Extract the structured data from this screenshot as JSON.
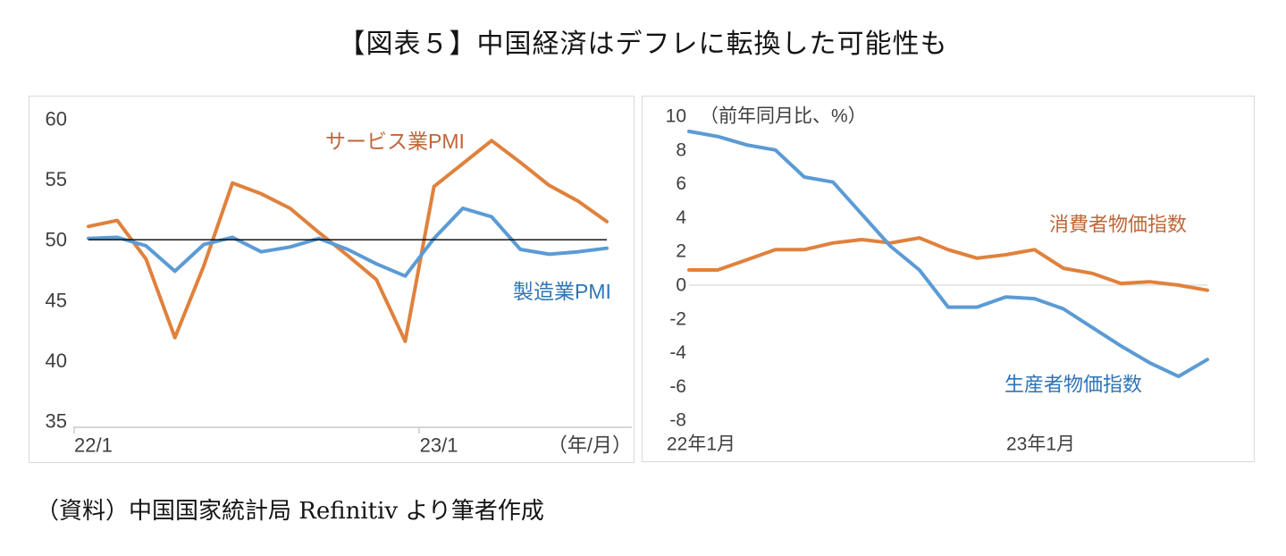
{
  "title": "【図表５】中国経済はデフレに転換した可能性も",
  "caption": "（資料）中国国家統計局 Refinitiv より筆者作成",
  "colors": {
    "orange_line": "#E0813C",
    "blue_line": "#5B9BD5",
    "orange_label": "#BF6639",
    "blue_label": "#2E75B6",
    "tick_text": "#3F3F3F",
    "panel_border": "#D9D9D9",
    "axis_line": "#BFBFBF",
    "ref_line": "#000000",
    "zero_line": "#D9D9D9"
  },
  "chart_data": [
    {
      "type": "line",
      "panel": "left",
      "categories": [
        "22/1",
        "22/2",
        "22/3",
        "22/4",
        "22/5",
        "22/6",
        "22/7",
        "22/8",
        "22/9",
        "22/10",
        "22/11",
        "22/12",
        "23/1",
        "23/2",
        "23/3",
        "23/4",
        "23/5",
        "23/6",
        "23/7"
      ],
      "series": [
        {
          "name": "サービス業PMI",
          "color_key": "orange_line",
          "label_color_key": "orange_label",
          "values": [
            51.1,
            51.6,
            48.4,
            41.9,
            47.8,
            54.7,
            53.8,
            52.6,
            50.6,
            48.7,
            46.7,
            41.6,
            54.4,
            56.3,
            58.2,
            56.4,
            54.5,
            53.2,
            51.5
          ]
        },
        {
          "name": "製造業PMI",
          "color_key": "blue_line",
          "label_color_key": "blue_label",
          "values": [
            50.1,
            50.2,
            49.5,
            47.4,
            49.6,
            50.2,
            49.0,
            49.4,
            50.1,
            49.2,
            48.0,
            47.0,
            50.1,
            52.6,
            51.9,
            49.2,
            48.8,
            49.0,
            49.3
          ]
        }
      ],
      "ylim": [
        35,
        60
      ],
      "yticks": [
        60,
        55,
        50,
        45,
        40,
        35
      ],
      "ref_line_value": 50,
      "xticks": [
        {
          "label": "22/1",
          "index": 0
        },
        {
          "label": "23/1",
          "index": 12
        }
      ],
      "x_axis_note": "（年/月）",
      "grid": "off",
      "legend_position": "inline-labels"
    },
    {
      "type": "line",
      "panel": "right",
      "categories": [
        "22/1",
        "22/2",
        "22/3",
        "22/4",
        "22/5",
        "22/6",
        "22/7",
        "22/8",
        "22/9",
        "22/10",
        "22/11",
        "22/12",
        "23/1",
        "23/2",
        "23/3",
        "23/4",
        "23/5",
        "23/6",
        "23/7"
      ],
      "series": [
        {
          "name": "消費者物価指数",
          "color_key": "orange_line",
          "label_color_key": "orange_label",
          "values": [
            0.9,
            0.9,
            1.5,
            2.1,
            2.1,
            2.5,
            2.7,
            2.5,
            2.8,
            2.1,
            1.6,
            1.8,
            2.1,
            1.0,
            0.7,
            0.1,
            0.2,
            0.0,
            -0.3
          ]
        },
        {
          "name": "生産者物価指数",
          "color_key": "blue_line",
          "label_color_key": "blue_label",
          "values": [
            9.1,
            8.8,
            8.3,
            8.0,
            6.4,
            6.1,
            4.2,
            2.3,
            0.9,
            -1.3,
            -1.3,
            -0.7,
            -0.8,
            -1.4,
            -2.5,
            -3.6,
            -4.6,
            -5.4,
            -4.4
          ]
        }
      ],
      "ylim": [
        -8,
        10
      ],
      "yticks": [
        10,
        8,
        6,
        4,
        2,
        0,
        -2,
        -4,
        -6,
        -8
      ],
      "zero_line": true,
      "unit_note": "（前年同月比、%）",
      "xticks": [
        {
          "label": "22年1月",
          "index": 0
        },
        {
          "label": "23年1月",
          "index": 12
        }
      ],
      "grid": "off",
      "legend_position": "inline-labels"
    }
  ]
}
